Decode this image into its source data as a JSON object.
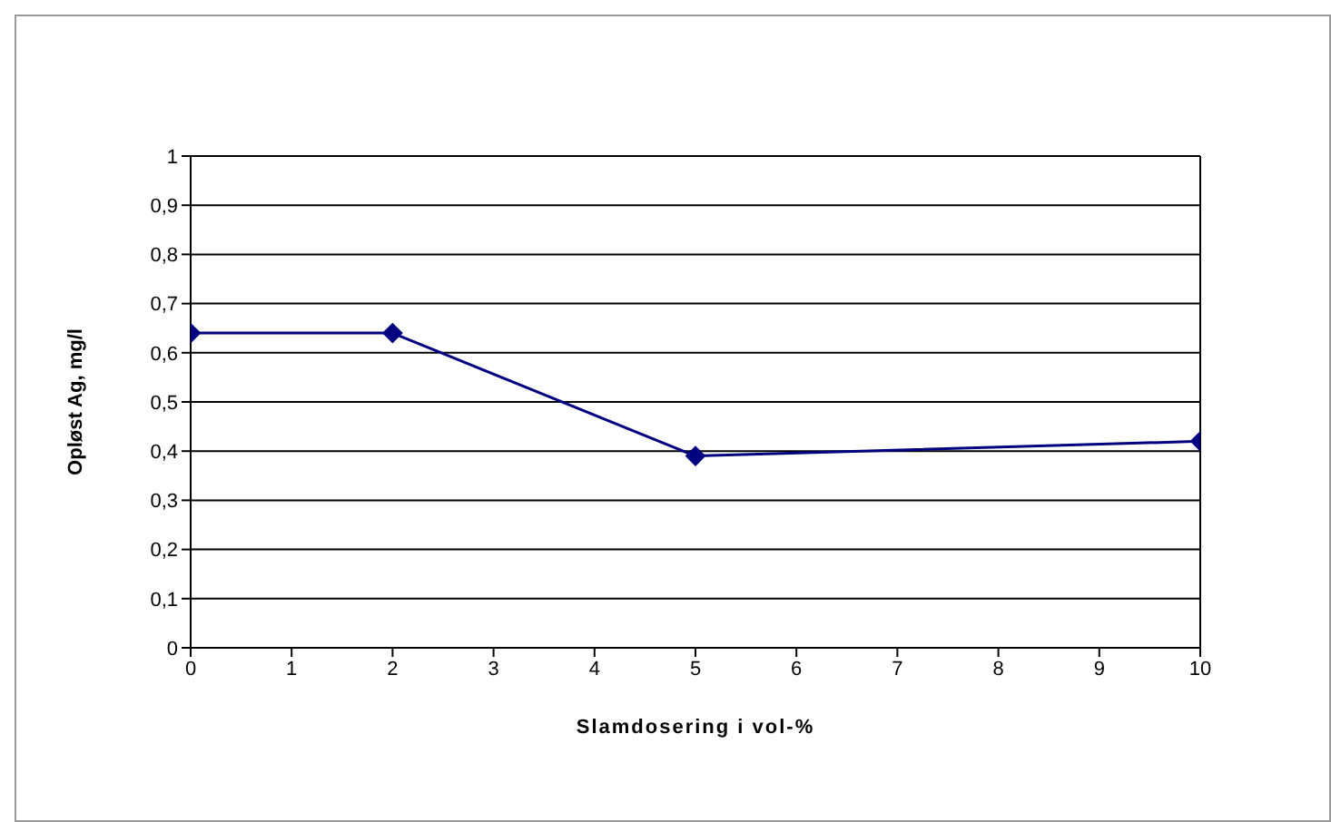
{
  "chart_data": {
    "type": "line",
    "xlabel": "Slamdosering i vol-%",
    "ylabel": "Opløst Ag, mg/l",
    "x": [
      0,
      2,
      5,
      10
    ],
    "series": [
      {
        "color": "#000080",
        "values": [
          0.64,
          0.64,
          0.39,
          0.42
        ]
      }
    ],
    "xlim": [
      0,
      10
    ],
    "xticks": [
      0,
      1,
      2,
      3,
      4,
      5,
      6,
      7,
      8,
      9,
      10
    ],
    "ylim": [
      0,
      1
    ],
    "yticks": [
      {
        "value": 0,
        "label": "0"
      },
      {
        "value": 0.1,
        "label": "0,1"
      },
      {
        "value": 0.2,
        "label": "0,2"
      },
      {
        "value": 0.3,
        "label": "0,3"
      },
      {
        "value": 0.4,
        "label": "0,4"
      },
      {
        "value": 0.5,
        "label": "0,5"
      },
      {
        "value": 0.6,
        "label": "0,6"
      },
      {
        "value": 0.7,
        "label": "0,7"
      },
      {
        "value": 0.8,
        "label": "0,8"
      },
      {
        "value": 0.9,
        "label": "0,9"
      },
      {
        "value": 1,
        "label": "1"
      }
    ],
    "grid": "y",
    "marker": "diamond",
    "line_style": "solid"
  }
}
